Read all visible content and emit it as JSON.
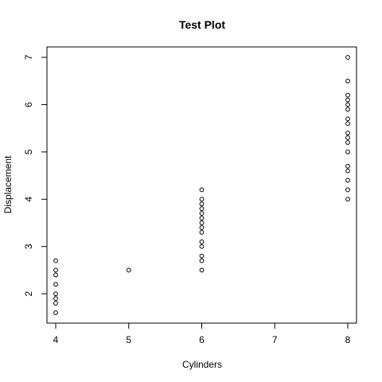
{
  "chart_data": {
    "type": "scatter",
    "title": "Test Plot",
    "xlabel": "Cylinders",
    "ylabel": "Displacement",
    "xlim": [
      3.88,
      8.12
    ],
    "ylim": [
      1.38,
      7.22
    ],
    "xticks": [
      4,
      5,
      6,
      7,
      8
    ],
    "yticks": [
      2,
      3,
      4,
      5,
      6,
      7
    ],
    "grid": false,
    "legend": "none",
    "marker": "open-circle",
    "colors": {
      "points": "#000000",
      "axes": "#000000",
      "background": "#ffffff"
    },
    "points": [
      {
        "x": 4,
        "y": 1.6
      },
      {
        "x": 4,
        "y": 1.8
      },
      {
        "x": 4,
        "y": 1.9
      },
      {
        "x": 4,
        "y": 2.0
      },
      {
        "x": 4,
        "y": 2.2
      },
      {
        "x": 4,
        "y": 2.4
      },
      {
        "x": 4,
        "y": 2.5
      },
      {
        "x": 4,
        "y": 2.7
      },
      {
        "x": 5,
        "y": 2.5
      },
      {
        "x": 6,
        "y": 2.5
      },
      {
        "x": 6,
        "y": 2.7
      },
      {
        "x": 6,
        "y": 2.8
      },
      {
        "x": 6,
        "y": 3.0
      },
      {
        "x": 6,
        "y": 3.1
      },
      {
        "x": 6,
        "y": 3.3
      },
      {
        "x": 6,
        "y": 3.4
      },
      {
        "x": 6,
        "y": 3.5
      },
      {
        "x": 6,
        "y": 3.6
      },
      {
        "x": 6,
        "y": 3.7
      },
      {
        "x": 6,
        "y": 3.8
      },
      {
        "x": 6,
        "y": 3.9
      },
      {
        "x": 6,
        "y": 4.0
      },
      {
        "x": 6,
        "y": 4.2
      },
      {
        "x": 8,
        "y": 4.0
      },
      {
        "x": 8,
        "y": 4.2
      },
      {
        "x": 8,
        "y": 4.4
      },
      {
        "x": 8,
        "y": 4.6
      },
      {
        "x": 8,
        "y": 4.7
      },
      {
        "x": 8,
        "y": 5.0
      },
      {
        "x": 8,
        "y": 5.2
      },
      {
        "x": 8,
        "y": 5.3
      },
      {
        "x": 8,
        "y": 5.4
      },
      {
        "x": 8,
        "y": 5.6
      },
      {
        "x": 8,
        "y": 5.7
      },
      {
        "x": 8,
        "y": 5.9
      },
      {
        "x": 8,
        "y": 6.0
      },
      {
        "x": 8,
        "y": 6.1
      },
      {
        "x": 8,
        "y": 6.2
      },
      {
        "x": 8,
        "y": 6.5
      },
      {
        "x": 8,
        "y": 7.0
      }
    ]
  }
}
